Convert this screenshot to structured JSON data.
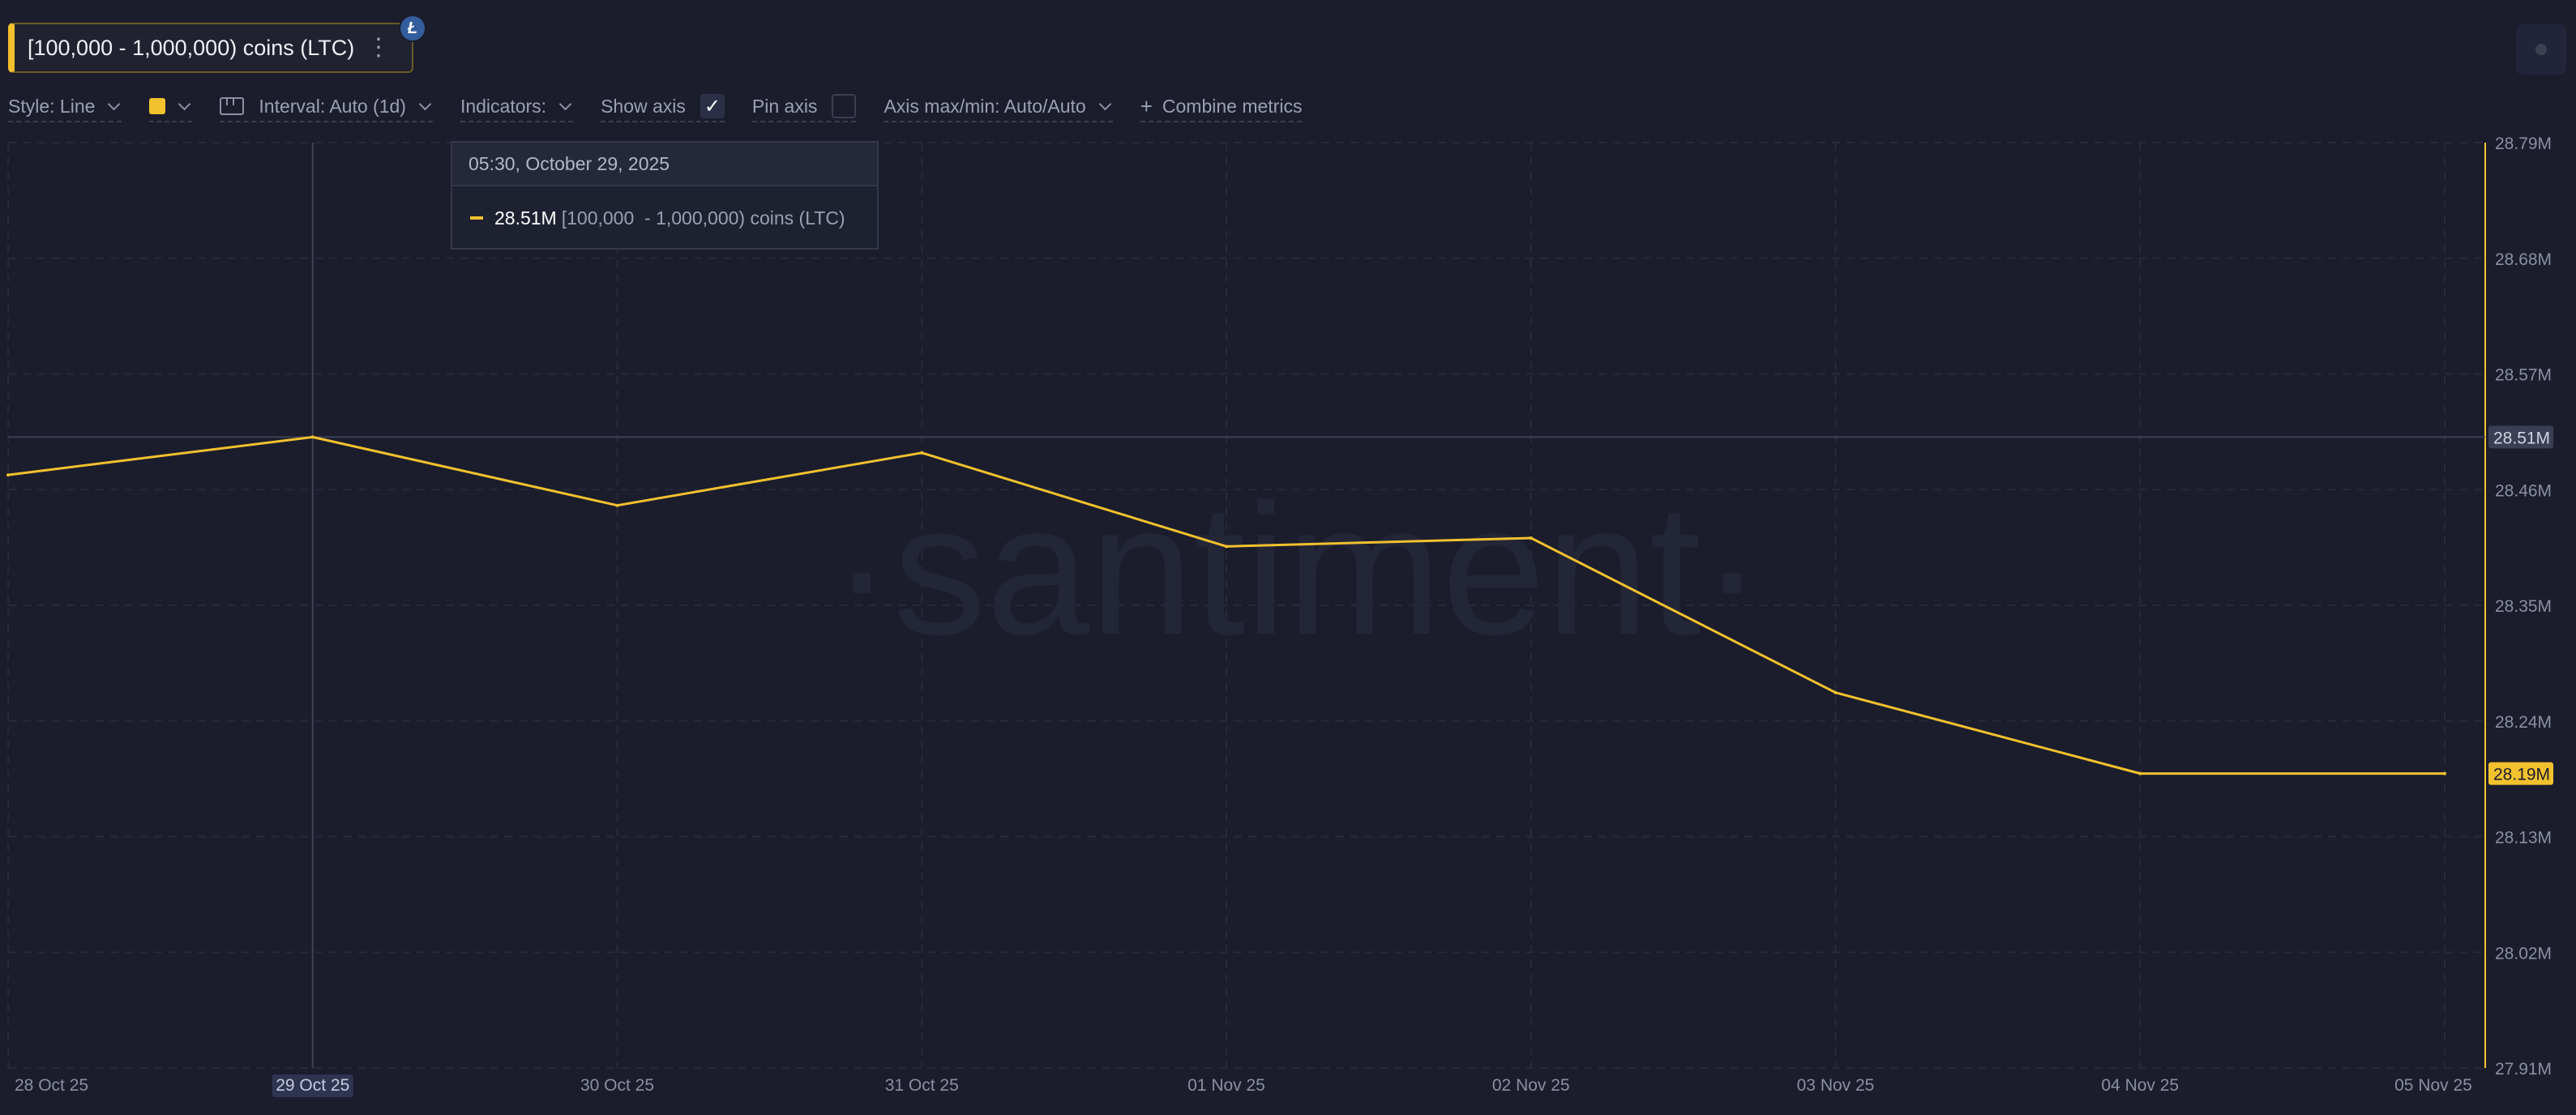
{
  "metric": {
    "title": "[100,000 - 1,000,000) coins (LTC)",
    "coin_badge": "Ł",
    "menu": "⋮"
  },
  "toolbar": {
    "style_label": "Style: Line",
    "interval_label": "Interval: Auto (1d)",
    "indicators_label": "Indicators:",
    "show_axis_label": "Show axis",
    "show_axis_checked": true,
    "pin_axis_label": "Pin axis",
    "pin_axis_checked": false,
    "axis_label": "Axis max/min: Auto/Auto",
    "combine_label": "Combine metrics",
    "series_color": "#f2c12e"
  },
  "tooltip": {
    "datetime": "05:30, October 29, 2025",
    "value": "28.51M",
    "label": "[100,000  - 1,000,000) coins (LTC)"
  },
  "watermark": "·santiment·",
  "chart_data": {
    "type": "line",
    "x": [
      "28 Oct 25",
      "29 Oct 25",
      "30 Oct 25",
      "31 Oct 25",
      "01 Nov 25",
      "02 Nov 25",
      "03 Nov 25",
      "04 Nov 25",
      "05 Nov 25"
    ],
    "series": [
      {
        "values": [
          28.474,
          28.51,
          28.445,
          28.495,
          28.406,
          28.414,
          28.267,
          28.19,
          28.19
        ]
      }
    ],
    "y_ticks": [
      "28.79M",
      "28.68M",
      "28.57M",
      "28.46M",
      "28.35M",
      "28.24M",
      "28.13M",
      "28.02M",
      "27.91M"
    ],
    "ylim": [
      27.91,
      28.79
    ],
    "y_unit": "M",
    "hover_index": 1,
    "hover_value_label": "28.51M",
    "last_value_label": "28.19M",
    "grid": true,
    "line_color": "#f2c12e"
  }
}
